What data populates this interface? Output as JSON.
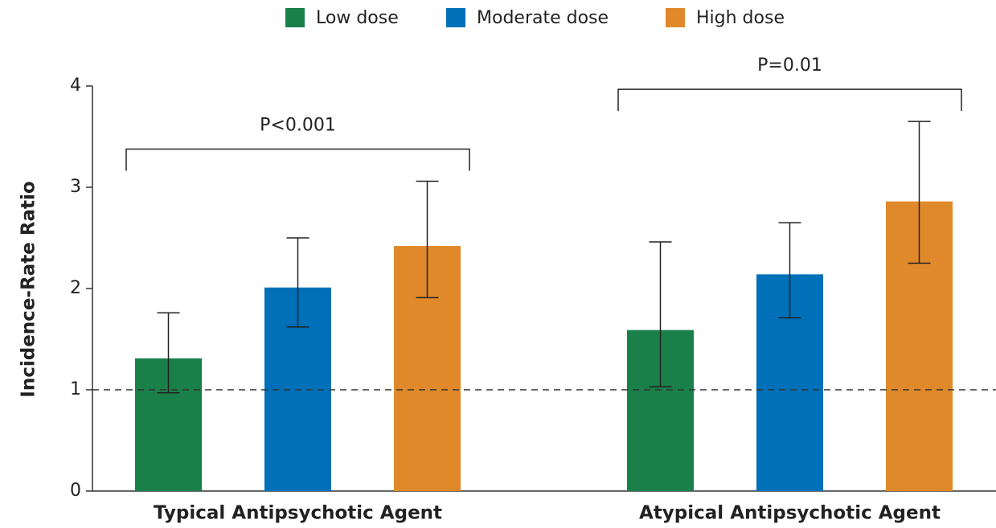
{
  "chart_data": {
    "type": "bar",
    "y_label": "Incidence-Rate Ratio",
    "categories": [
      "Typical Antipsychotic Agent",
      "Atypical Antipsychotic Agent"
    ],
    "annotations": [
      "P<0.001",
      "P=0.01"
    ],
    "series": [
      {
        "name": "Low dose",
        "color": "#1a8049",
        "values": [
          1.31,
          1.59
        ],
        "ci_lower": [
          0.97,
          1.03
        ],
        "ci_upper": [
          1.76,
          2.46
        ]
      },
      {
        "name": "Moderate dose",
        "color": "#0070b8",
        "values": [
          2.01,
          2.14
        ],
        "ci_lower": [
          1.62,
          1.71
        ],
        "ci_upper": [
          2.5,
          2.65
        ]
      },
      {
        "name": "High dose",
        "color": "#e0892a",
        "values": [
          2.42,
          2.86
        ],
        "ci_lower": [
          1.91,
          2.25
        ],
        "ci_upper": [
          3.06,
          3.65
        ]
      }
    ],
    "reference_line": 1,
    "ylim": [
      0,
      4
    ],
    "yticks": [
      0,
      1,
      2,
      3,
      4
    ]
  }
}
